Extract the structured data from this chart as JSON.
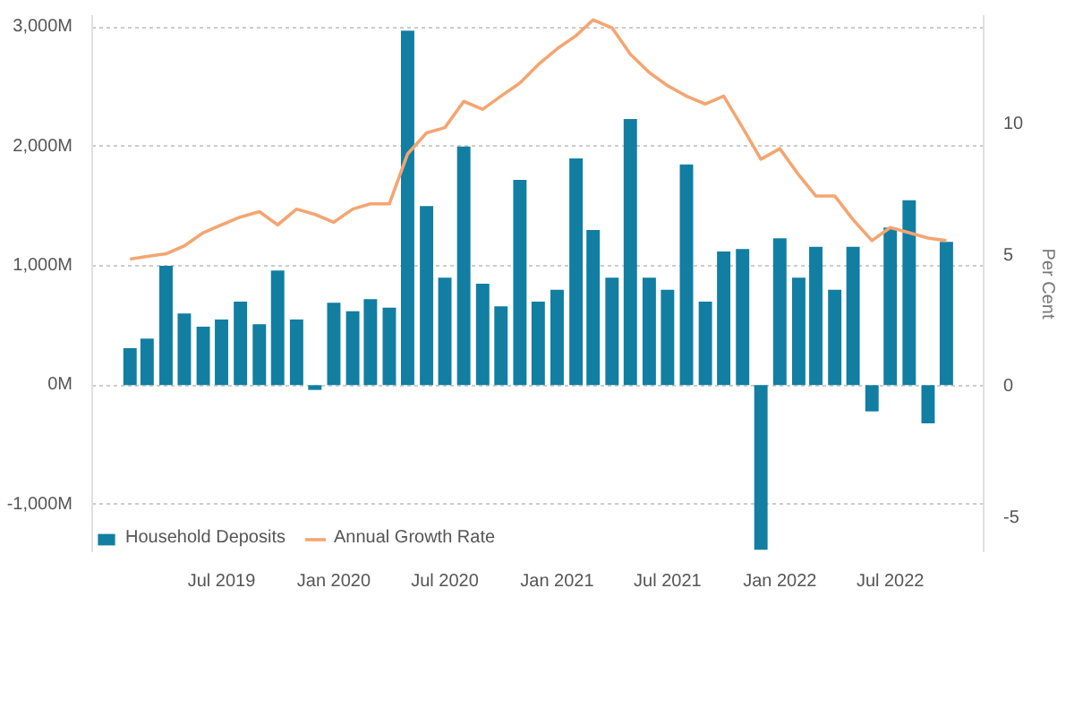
{
  "chart_data": {
    "type": "bar",
    "x": [
      "2019-02",
      "2019-03",
      "2019-04",
      "2019-05",
      "2019-06",
      "2019-07",
      "2019-08",
      "2019-09",
      "2019-10",
      "2019-11",
      "2019-12",
      "2020-01",
      "2020-02",
      "2020-03",
      "2020-04",
      "2020-05",
      "2020-06",
      "2020-07",
      "2020-08",
      "2020-09",
      "2020-10",
      "2020-11",
      "2020-12",
      "2021-01",
      "2021-02",
      "2021-03",
      "2021-04",
      "2021-05",
      "2021-06",
      "2021-07",
      "2021-08",
      "2021-09",
      "2021-10",
      "2021-11",
      "2021-12",
      "2022-01",
      "2022-02",
      "2022-03",
      "2022-04",
      "2022-05",
      "2022-06",
      "2022-07",
      "2022-08",
      "2022-09",
      "2022-10"
    ],
    "series": [
      {
        "name": "Household Deposits",
        "color": "#117ea2",
        "values": [
          310,
          390,
          1000,
          600,
          490,
          550,
          700,
          510,
          960,
          550,
          -40,
          690,
          620,
          720,
          650,
          2970,
          1500,
          900,
          2000,
          850,
          660,
          1720,
          700,
          800,
          1900,
          1300,
          900,
          2230,
          900,
          800,
          1850,
          700,
          1120,
          1140,
          -1380,
          1230,
          900,
          1160,
          800,
          1160,
          -220,
          1320,
          1550,
          -320,
          1200
        ]
      },
      {
        "name": "Annual Growth Rate",
        "type": "line",
        "axis": "y2",
        "color": "#f4a571",
        "values": [
          4.8,
          4.9,
          5.0,
          5.3,
          5.8,
          6.1,
          6.4,
          6.6,
          6.1,
          6.7,
          6.5,
          6.2,
          6.7,
          6.9,
          6.9,
          8.8,
          9.6,
          9.8,
          10.8,
          10.5,
          11.0,
          11.5,
          12.2,
          12.8,
          13.3,
          13.9,
          13.6,
          12.6,
          11.9,
          11.4,
          11.0,
          10.7,
          11.0,
          9.8,
          8.6,
          9.0,
          8.0,
          7.2,
          7.2,
          6.3,
          5.5,
          6.0,
          5.8,
          5.6,
          5.5
        ]
      }
    ],
    "y2label": "Per Cent",
    "xlim": [
      "2018-12",
      "2022-12"
    ],
    "xticks": [
      {
        "value": "2019-07",
        "label": "Jul 2019"
      },
      {
        "value": "2020-01",
        "label": "Jan 2020"
      },
      {
        "value": "2020-07",
        "label": "Jul 2020"
      },
      {
        "value": "2021-01",
        "label": "Jan 2021"
      },
      {
        "value": "2021-07",
        "label": "Jul 2021"
      },
      {
        "value": "2022-01",
        "label": "Jan 2022"
      },
      {
        "value": "2022-07",
        "label": "Jul 2022"
      }
    ],
    "ylim": [
      -1400,
      3100
    ],
    "yticks": [
      {
        "value": -1000,
        "label": "-1,000M"
      },
      {
        "value": 0,
        "label": "0M"
      },
      {
        "value": 1000,
        "label": "1,000M"
      },
      {
        "value": 2000,
        "label": "2,000M"
      },
      {
        "value": 3000,
        "label": "3,000M"
      }
    ],
    "y2lim": [
      -6.36,
      14.08
    ],
    "y2ticks": [
      -5,
      0,
      5,
      10
    ],
    "grid": "y",
    "legend": "bottom left",
    "line_style": "solid",
    "marker": "none"
  }
}
